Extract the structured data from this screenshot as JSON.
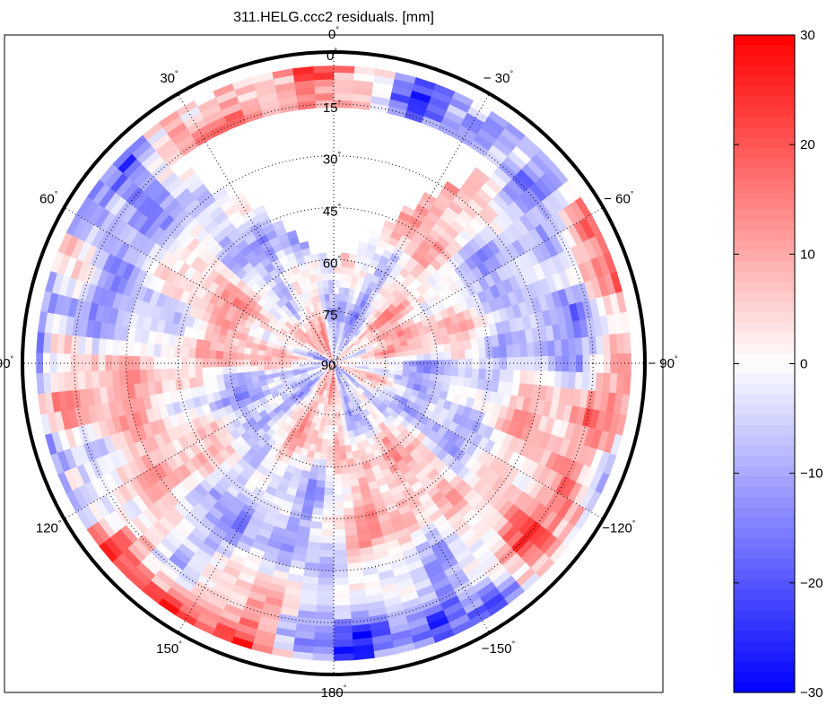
{
  "chart_data": {
    "type": "heatmap",
    "subtype": "polar-skyplot",
    "title": "311.HELG.ccc2 residuals. [mm]",
    "radial_axis": {
      "quantity": "zenith/elevation",
      "center_label": "90°",
      "outer_value": 0,
      "center_value": 90,
      "ticks": [
        0,
        15,
        30,
        45,
        60,
        75
      ],
      "tick_labels": [
        "0",
        "15",
        "30",
        "45",
        "60",
        "75"
      ],
      "tick_degree_mark": "°"
    },
    "angular_axis": {
      "quantity": "azimuth",
      "direction": "clockwise-negative",
      "spokes": [
        0,
        -30,
        -60,
        -90,
        -120,
        -150,
        180,
        150,
        120,
        90,
        60,
        30
      ],
      "labels": [
        "0",
        "− 30",
        "− 60",
        "− 90",
        "−120",
        "−150",
        "180",
        "150",
        "120",
        "90",
        "60",
        "30"
      ],
      "degree_mark": "°"
    },
    "colorbar": {
      "min": -30,
      "max": 30,
      "ticks": [
        30,
        20,
        10,
        0,
        -10,
        -20,
        -30
      ],
      "tick_labels": [
        "30",
        "20",
        "10",
        "0",
        "−10",
        "−20",
        "−30"
      ],
      "colormap": "blue-white-red",
      "low_color": "#0000ff",
      "mid_color": "#ffffff",
      "high_color": "#ff0000"
    },
    "coverage": {
      "description": "data covers full sky except a northern gap (azimuth about -40 to 40) at elevations above ~15",
      "gap_azimuth_range": [
        -40,
        40
      ],
      "gap_min_elevation": 15,
      "gap_max_elevation": 60
    },
    "value_range": [
      -30,
      30
    ],
    "grid": true
  }
}
